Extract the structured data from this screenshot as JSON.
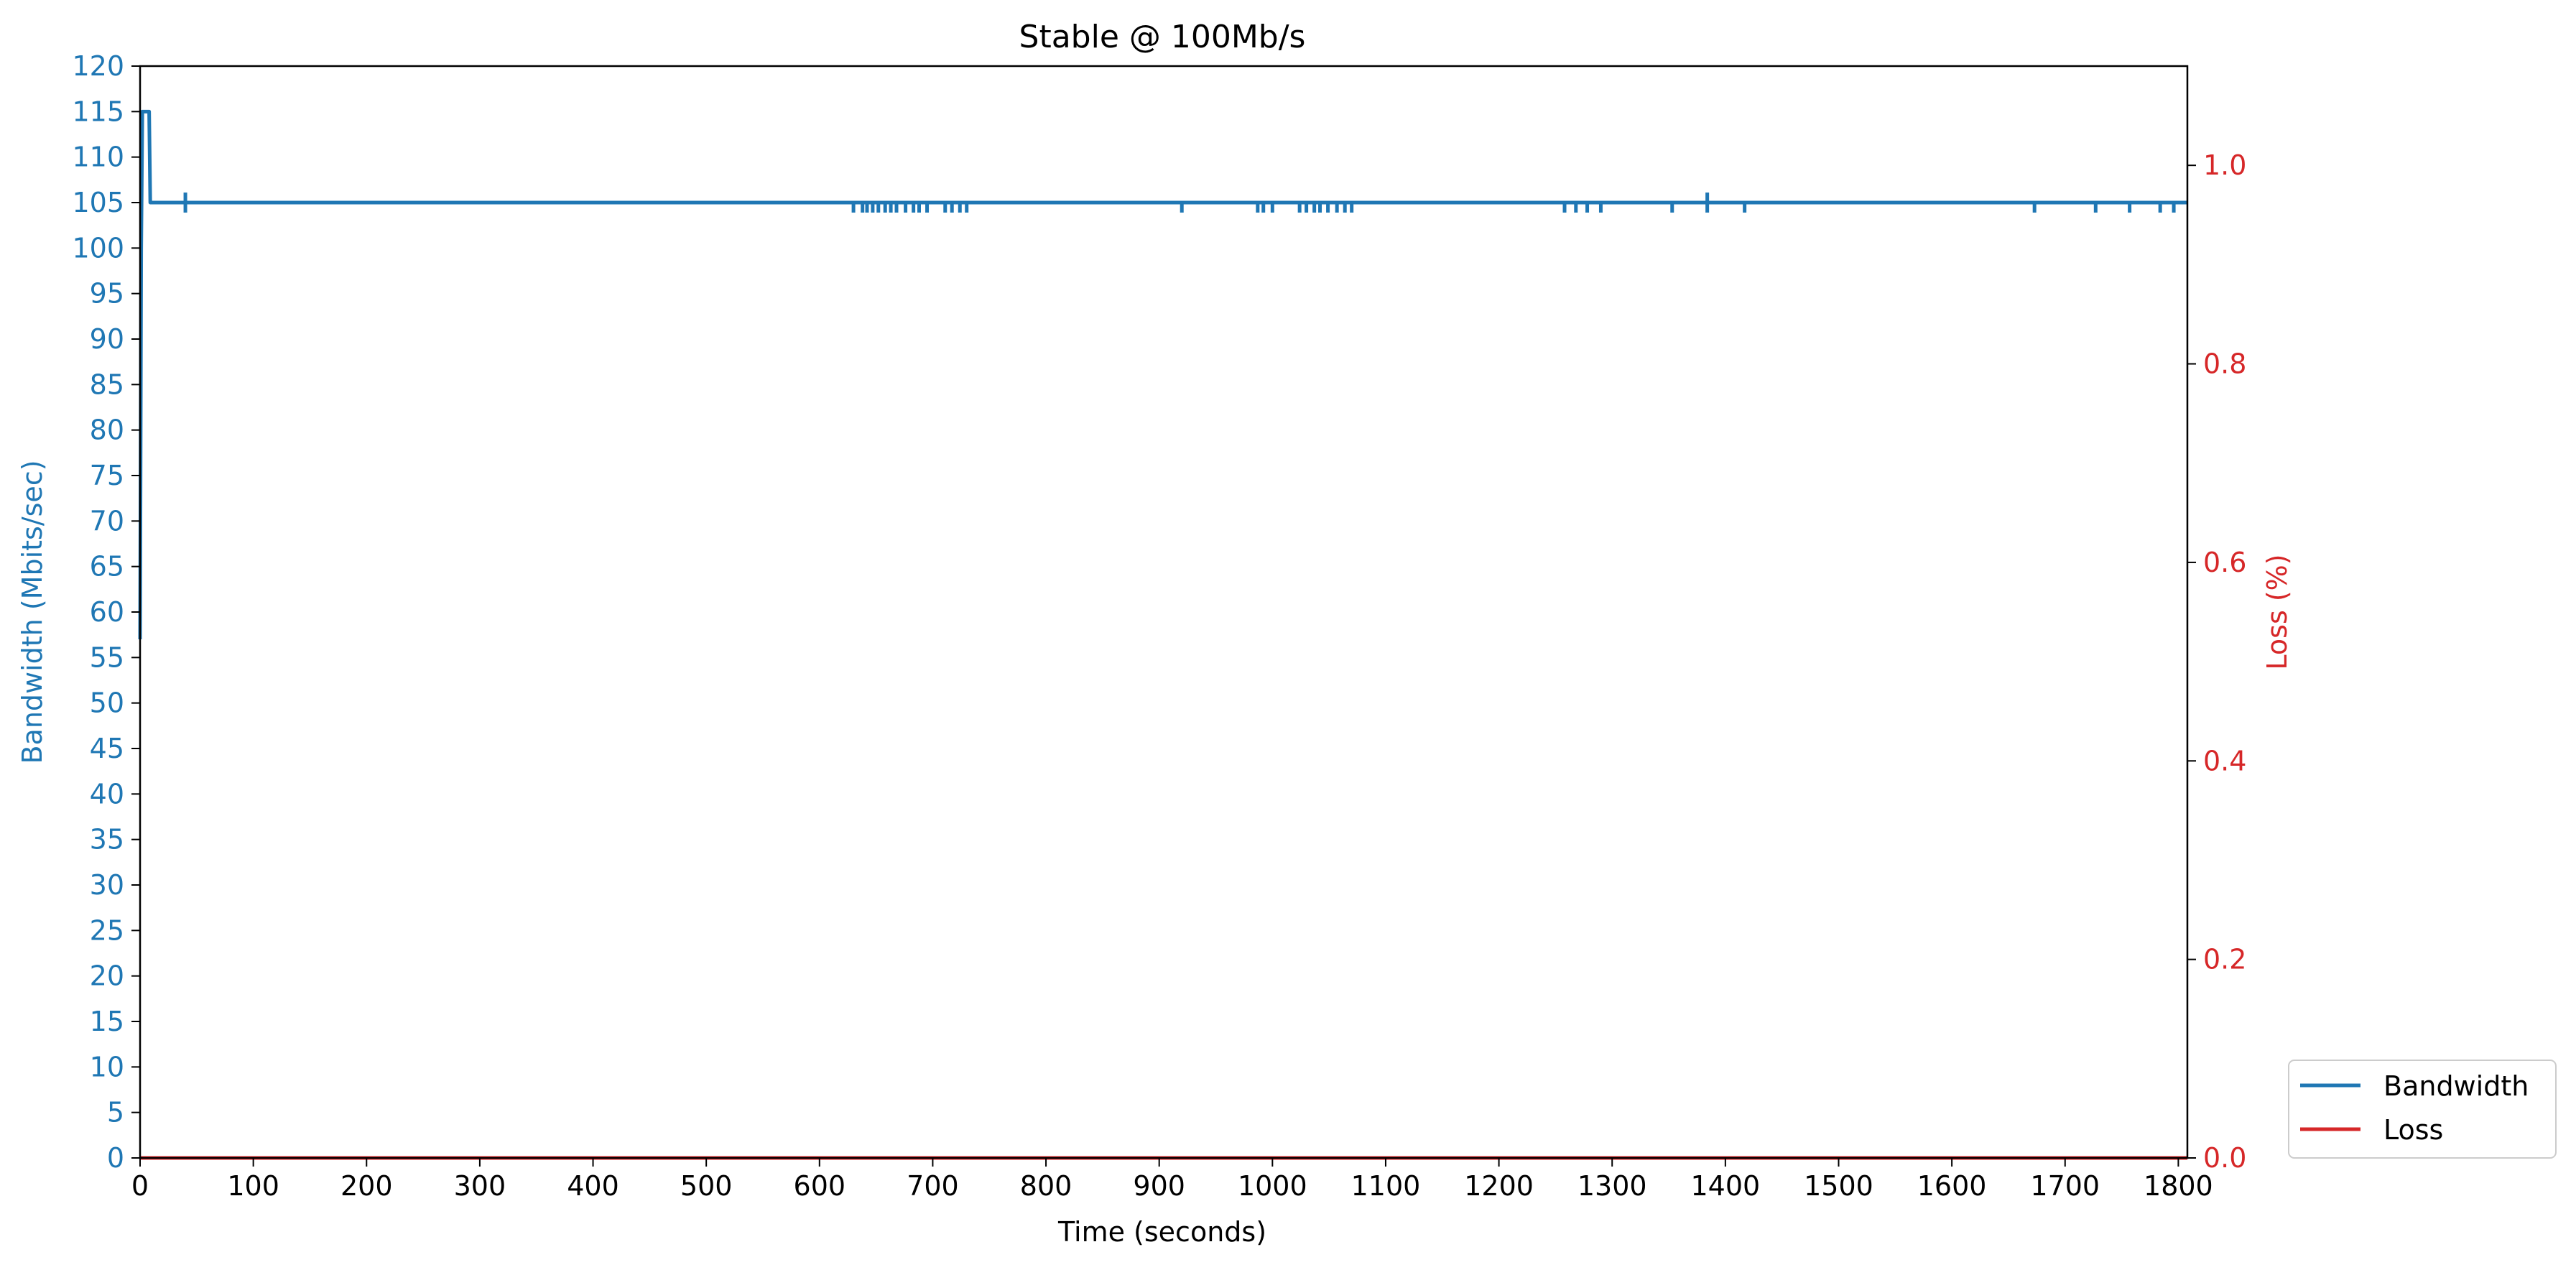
{
  "chart_data": {
    "type": "line",
    "title": "Stable @ 100Mb/s",
    "xlabel": "Time (seconds)",
    "ylabel_left": "Bandwidth (Mbits/sec)",
    "ylabel_right": "Loss (%)",
    "xlim": [
      0,
      1808
    ],
    "ylim_left": [
      0,
      120
    ],
    "ylim_right": [
      0,
      1.1
    ],
    "x_ticks": [
      "0",
      "100",
      "200",
      "300",
      "400",
      "500",
      "600",
      "700",
      "800",
      "900",
      "1000",
      "1100",
      "1200",
      "1300",
      "1400",
      "1500",
      "1600",
      "1700",
      "1800"
    ],
    "y_left_ticks": [
      "0",
      "5",
      "10",
      "15",
      "20",
      "25",
      "30",
      "35",
      "40",
      "45",
      "50",
      "55",
      "60",
      "65",
      "70",
      "75",
      "80",
      "85",
      "90",
      "95",
      "100",
      "105",
      "110",
      "115",
      "120"
    ],
    "y_right_ticks": [
      "0.0",
      "0.2",
      "0.4",
      "0.6",
      "0.8",
      "1.0"
    ],
    "grid": false,
    "legend_position": "bottom-right-outside",
    "colors": {
      "bandwidth": "#1f77b4",
      "loss": "#d62728",
      "left_axis": "#1f77b4",
      "right_axis": "#d62728"
    },
    "series": [
      {
        "name": "Bandwidth",
        "axis": "left",
        "baseline": 105,
        "points": [
          [
            0,
            57
          ],
          [
            1,
            100
          ],
          [
            2,
            115
          ],
          [
            8,
            115
          ],
          [
            9,
            105
          ],
          [
            1808,
            105
          ]
        ],
        "dips": [
          40,
          630,
          638,
          642,
          647,
          652,
          658,
          663,
          668,
          676,
          683,
          688,
          695,
          711,
          717,
          724,
          730,
          920,
          987,
          992,
          1000,
          1024,
          1030,
          1037,
          1042,
          1049,
          1057,
          1064,
          1070,
          1258,
          1268,
          1278,
          1290,
          1353,
          1384,
          1417,
          1673,
          1727,
          1757,
          1784,
          1796
        ],
        "spikes": [
          40,
          1384
        ]
      },
      {
        "name": "Loss",
        "axis": "right",
        "x": [
          0,
          1808
        ],
        "values": [
          0,
          0
        ]
      }
    ]
  }
}
